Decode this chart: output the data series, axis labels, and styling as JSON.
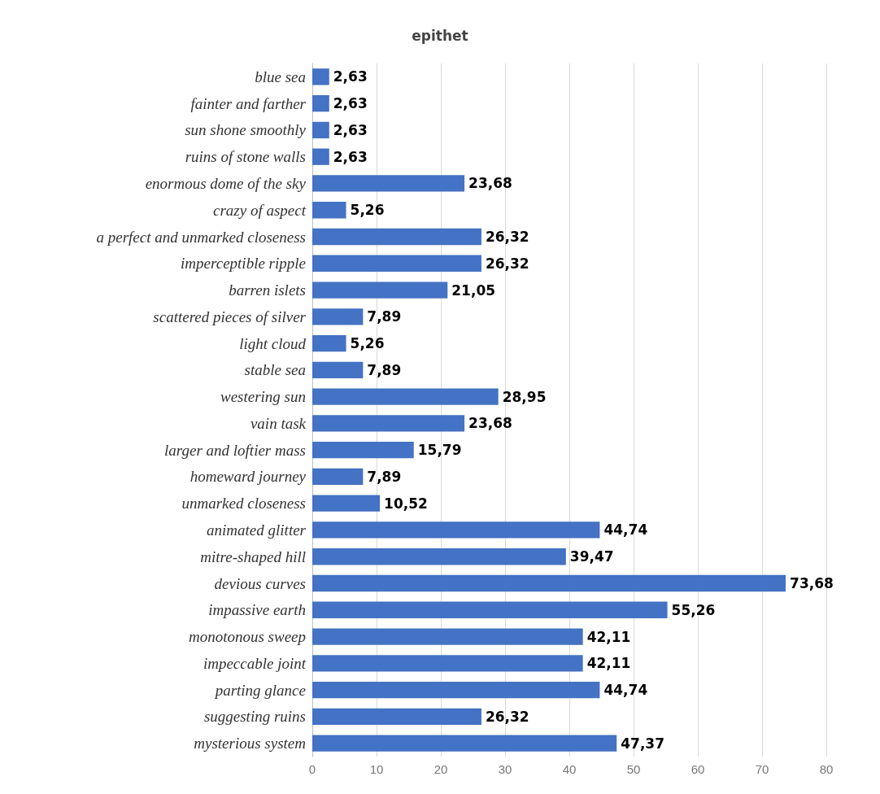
{
  "chart_data": {
    "type": "bar",
    "orientation": "horizontal",
    "title": "epithet",
    "categories": [
      "blue sea",
      "fainter and farther",
      "sun shone smoothly",
      "ruins of stone walls",
      "enormous dome of the sky",
      "crazy of aspect",
      "a perfect and unmarked closeness",
      "imperceptible ripple",
      "barren islets",
      "scattered pieces of silver",
      "light cloud",
      "stable sea",
      "westering sun",
      "vain task",
      "larger and loftier mass",
      "homeward journey",
      "unmarked closeness",
      "animated glitter",
      "mitre-shaped hill",
      "devious curves",
      "impassive earth",
      "monotonous sweep",
      "impeccable joint",
      "parting glance",
      "suggesting ruins",
      "mysterious system"
    ],
    "values": [
      2.63,
      2.63,
      2.63,
      2.63,
      23.68,
      5.26,
      26.32,
      26.32,
      21.05,
      7.89,
      5.26,
      7.89,
      28.95,
      23.68,
      15.79,
      7.89,
      10.52,
      44.74,
      39.47,
      73.68,
      55.26,
      42.11,
      42.11,
      44.74,
      26.32,
      47.37
    ],
    "value_labels": [
      "2,63",
      "2,63",
      "2,63",
      "2,63",
      "23,68",
      "5,26",
      "26,32",
      "26,32",
      "21,05",
      "7,89",
      "5,26",
      "7,89",
      "28,95",
      "23,68",
      "15,79",
      "7,89",
      "10,52",
      "44,74",
      "39,47",
      "73,68",
      "55,26",
      "42,11",
      "42,11",
      "44,74",
      "26,32",
      "47,37"
    ],
    "color": "#4472c4",
    "xlim": [
      0,
      80
    ],
    "xticks": [
      0,
      10,
      20,
      30,
      40,
      50,
      60,
      70,
      80
    ],
    "grid": "x"
  }
}
